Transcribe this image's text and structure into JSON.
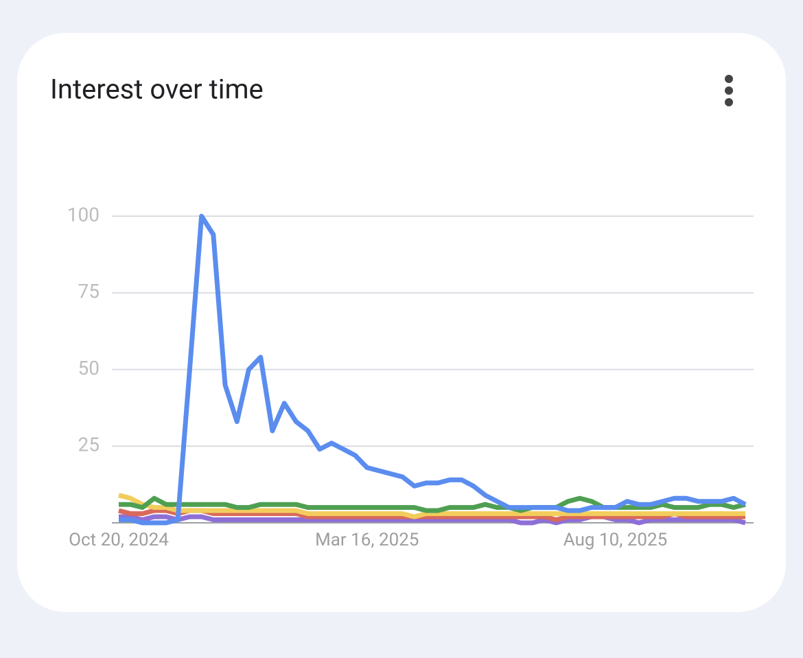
{
  "chart_data": {
    "type": "line",
    "title": "Interest over time",
    "categories": [
      "Oct 20, 2024",
      null,
      null,
      null,
      null,
      null,
      null,
      null,
      null,
      null,
      null,
      null,
      null,
      null,
      null,
      null,
      null,
      null,
      null,
      null,
      null,
      "Mar 16, 2025",
      null,
      null,
      null,
      null,
      null,
      null,
      null,
      null,
      null,
      null,
      null,
      null,
      null,
      null,
      null,
      null,
      null,
      null,
      null,
      null,
      "Aug 10, 2025",
      null,
      null,
      null,
      null,
      null,
      null,
      null,
      null,
      null,
      null,
      null
    ],
    "series": [
      {
        "color": "#8e6fd6",
        "values": [
          2,
          2,
          1,
          2,
          2,
          1,
          2,
          2,
          1,
          1,
          1,
          1,
          1,
          1,
          1,
          1,
          1,
          1,
          1,
          1,
          1,
          1,
          1,
          1,
          1,
          1,
          1,
          1,
          1,
          1,
          1,
          1,
          1,
          1,
          0,
          0,
          1,
          0,
          1,
          1,
          2,
          2,
          1,
          1,
          0,
          1,
          1,
          1,
          1,
          1,
          1,
          1,
          1,
          0
        ]
      },
      {
        "color": "#d9695b",
        "values": [
          4,
          3,
          3,
          4,
          4,
          3,
          4,
          4,
          3,
          3,
          3,
          3,
          3,
          3,
          3,
          3,
          2,
          2,
          2,
          2,
          2,
          2,
          2,
          2,
          2,
          2,
          2,
          2,
          2,
          2,
          2,
          2,
          2,
          2,
          2,
          2,
          2,
          1,
          2,
          2,
          2,
          2,
          2,
          2,
          2,
          2,
          2,
          3,
          2,
          2,
          2,
          2,
          2,
          2
        ]
      },
      {
        "color": "#f2cd5c",
        "values": [
          9,
          8,
          6,
          5,
          5,
          4,
          4,
          4,
          4,
          4,
          4,
          4,
          4,
          4,
          4,
          4,
          3,
          3,
          3,
          3,
          3,
          3,
          3,
          3,
          3,
          2,
          3,
          3,
          3,
          3,
          3,
          3,
          3,
          3,
          3,
          3,
          3,
          3,
          3,
          3,
          3,
          3,
          3,
          3,
          3,
          3,
          3,
          3,
          3,
          3,
          3,
          3,
          3,
          3
        ]
      },
      {
        "color": "#4f9f52",
        "values": [
          6,
          6,
          5,
          8,
          6,
          6,
          6,
          6,
          6,
          6,
          5,
          5,
          6,
          6,
          6,
          6,
          5,
          5,
          5,
          5,
          5,
          5,
          5,
          5,
          5,
          5,
          4,
          4,
          5,
          5,
          5,
          6,
          5,
          5,
          4,
          5,
          5,
          5,
          7,
          8,
          7,
          5,
          5,
          5,
          5,
          5,
          6,
          5,
          5,
          5,
          6,
          6,
          5,
          6
        ]
      },
      {
        "color": "#5b8def",
        "values": [
          1,
          1,
          0,
          0,
          0,
          1,
          50,
          100,
          94,
          45,
          33,
          50,
          54,
          30,
          39,
          33,
          30,
          24,
          26,
          24,
          22,
          18,
          17,
          16,
          15,
          12,
          13,
          13,
          14,
          14,
          12,
          9,
          7,
          5,
          5,
          5,
          5,
          5,
          4,
          4,
          5,
          5,
          5,
          7,
          6,
          6,
          7,
          8,
          8,
          7,
          7,
          7,
          8,
          6
        ]
      }
    ],
    "ylim": [
      0,
      100
    ],
    "yticks": [
      25,
      50,
      75,
      100
    ],
    "grid": true
  }
}
